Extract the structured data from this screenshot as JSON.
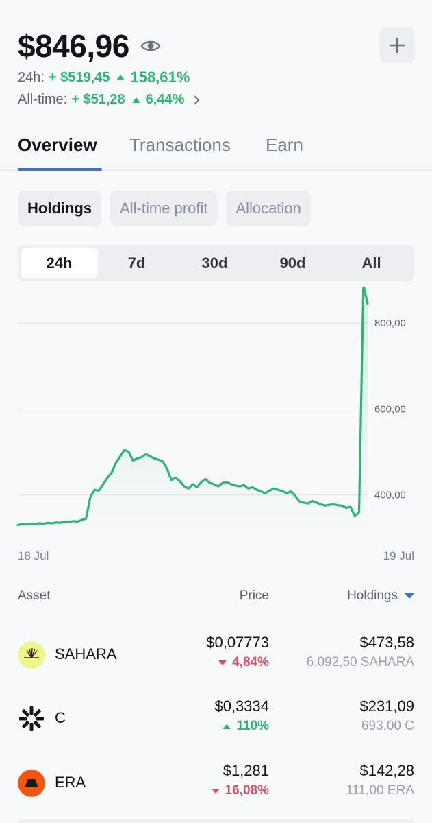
{
  "header": {
    "balance": "$846,96",
    "day_label": "24h:",
    "day_change": "+ $519,45",
    "day_pct": "158,61%",
    "alltime_label": "All-time:",
    "alltime_change": "+ $51,28",
    "alltime_pct": "6,44%"
  },
  "tabs": [
    "Overview",
    "Transactions",
    "Earn"
  ],
  "chips": [
    "Holdings",
    "All-time profit",
    "Allocation"
  ],
  "ranges": [
    "24h",
    "7d",
    "30d",
    "90d",
    "All"
  ],
  "chart_data": {
    "type": "area",
    "x_start_label": "18 Jul",
    "x_end_label": "19 Jul",
    "y_ticks": [
      "800,00",
      "600,00",
      "400,00"
    ],
    "y_tick_values": [
      800,
      600,
      400
    ],
    "ylim": [
      310,
      885
    ],
    "grid": true,
    "color": "#2bb673",
    "values": [
      330,
      332,
      331,
      333,
      332,
      334,
      333,
      335,
      334,
      336,
      335,
      338,
      337,
      339,
      338,
      342,
      345,
      395,
      412,
      410,
      425,
      440,
      452,
      475,
      490,
      505,
      500,
      480,
      485,
      488,
      495,
      490,
      485,
      482,
      478,
      460,
      435,
      440,
      432,
      420,
      415,
      425,
      418,
      430,
      437,
      428,
      425,
      420,
      428,
      430,
      425,
      422,
      420,
      423,
      415,
      418,
      412,
      408,
      404,
      410,
      415,
      412,
      409,
      404,
      408,
      398,
      385,
      382,
      380,
      386,
      382,
      378,
      375,
      377,
      378,
      376,
      375,
      370,
      372,
      350,
      360,
      890,
      845
    ]
  },
  "table": {
    "headers": {
      "asset": "Asset",
      "price": "Price",
      "holdings": "Holdings"
    },
    "rows": [
      {
        "name": "SAHARA",
        "price": "$0,07773",
        "delta": "4,84%",
        "direction": "down",
        "value": "$473,58",
        "qty": "6.092,50 SAHARA",
        "icon": "sahara-logo-icon"
      },
      {
        "name": "C",
        "price": "$0,3334",
        "delta": "110%",
        "direction": "up",
        "value": "$231,09",
        "qty": "693,00 C",
        "icon": "c-logo-icon"
      },
      {
        "name": "ERA",
        "price": "$1,281",
        "delta": "16,08%",
        "direction": "down",
        "value": "$142,28",
        "qty": "111,00 ERA",
        "icon": "era-logo-icon"
      }
    ]
  },
  "colors": {
    "positive": "#2bb673",
    "negative": "#e04c5a",
    "accent": "#3a71d6"
  }
}
